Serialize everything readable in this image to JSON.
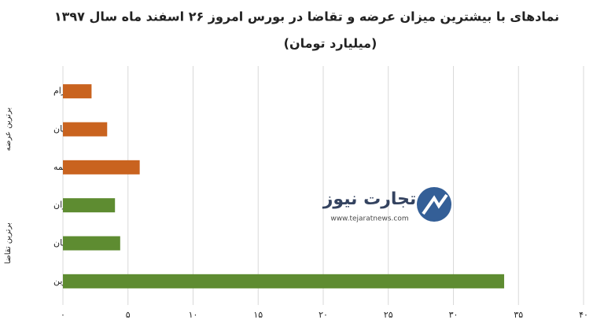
{
  "chart_data": {
    "type": "hbar",
    "title": "نمادهای با بیشترین میزان عرضه و تقاضا در بورس امروز ۲۶ اسفند ماه سال ۱۳۹۷",
    "subtitle": "(میلیارد تومان)",
    "categories": [
      "کسرام",
      "کیان",
      "وبیمه",
      "ستران",
      "خراسان",
      "تنوین"
    ],
    "series": [
      {
        "name": "برترین عرضه",
        "color": "#c9631f",
        "values": [
          2.2,
          3.4,
          5.9,
          null,
          null,
          null
        ]
      },
      {
        "name": "برترین تقاضا",
        "color": "#5e8c31",
        "values": [
          null,
          null,
          null,
          4.0,
          4.4,
          33.9
        ]
      }
    ],
    "xlim": [
      0,
      40
    ],
    "xticks": [
      {
        "value": 0,
        "label": "۰"
      },
      {
        "value": 5,
        "label": "۵"
      },
      {
        "value": 10,
        "label": "۱۰"
      },
      {
        "value": 15,
        "label": "۱۵"
      },
      {
        "value": 20,
        "label": "۲۰"
      },
      {
        "value": 25,
        "label": "۲۵"
      },
      {
        "value": 30,
        "label": "۳۰"
      },
      {
        "value": 35,
        "label": "۳۵"
      },
      {
        "value": 40,
        "label": "۴۰"
      }
    ],
    "grid": true,
    "watermark": {
      "name": "تجارت نیوز",
      "url": "www.tejaratnews.com"
    }
  }
}
